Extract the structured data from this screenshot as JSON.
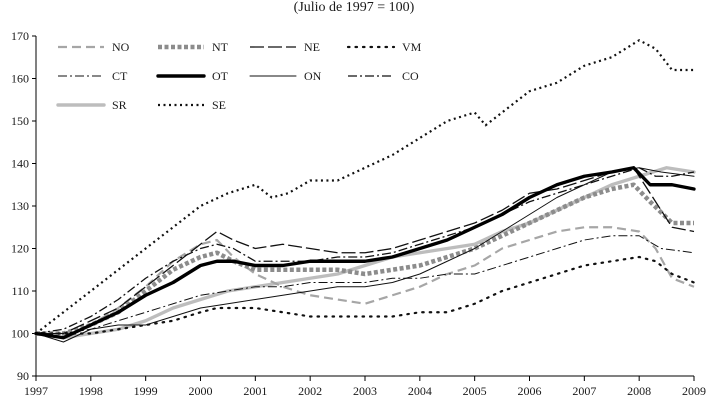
{
  "chart_data": {
    "type": "line",
    "subtitle": "(Julio de 1997 = 100)",
    "x_ticks": [
      "1997",
      "1998",
      "1999",
      "2000",
      "2001",
      "2002",
      "2003",
      "2004",
      "2005",
      "2006",
      "2007",
      "2008",
      "2009"
    ],
    "y_ticks": [
      90,
      100,
      110,
      120,
      130,
      140,
      150,
      160,
      170
    ],
    "xlim": [
      1997,
      2009
    ],
    "ylim": [
      90,
      170
    ],
    "legend_position": "top-left",
    "series": [
      {
        "name": "NO",
        "color": "#a6a6a6",
        "style": "dash",
        "x": [
          1997.0,
          1997.5,
          1998.0,
          1998.5,
          1999.0,
          1999.5,
          2000.0,
          2000.3,
          2000.6,
          2001.0,
          2001.5,
          2002.0,
          2002.5,
          2003.0,
          2003.5,
          2004.0,
          2004.5,
          2005.0,
          2005.5,
          2006.0,
          2006.5,
          2007.0,
          2007.5,
          2008.0,
          2008.3,
          2008.6,
          2009.0
        ],
        "y": [
          100,
          99,
          102,
          106,
          111,
          117,
          121,
          122,
          118,
          114,
          111,
          109,
          108,
          107,
          109,
          111,
          114,
          116,
          120,
          122,
          124,
          125,
          125,
          124,
          120,
          113,
          111
        ]
      },
      {
        "name": "NT",
        "color": "#8c8c8c",
        "style": "dotted-thick",
        "x": [
          1997.0,
          1997.5,
          1998.0,
          1998.5,
          1999.0,
          1999.5,
          2000.0,
          2000.3,
          2000.6,
          2001.0,
          2001.5,
          2002.0,
          2002.5,
          2003.0,
          2003.5,
          2004.0,
          2004.5,
          2005.0,
          2005.5,
          2006.0,
          2006.5,
          2007.0,
          2007.5,
          2007.9,
          2008.2,
          2008.6,
          2009.0
        ],
        "y": [
          100,
          100,
          102,
          105,
          110,
          115,
          118,
          119,
          117,
          115,
          115,
          115,
          115,
          114,
          115,
          116,
          118,
          120,
          123,
          126,
          129,
          132,
          134,
          135,
          131,
          126,
          126
        ]
      },
      {
        "name": "NE",
        "color": "#111111",
        "style": "longdash",
        "x": [
          1997.0,
          1997.5,
          1998.0,
          1998.5,
          1999.0,
          1999.5,
          2000.0,
          2000.3,
          2000.6,
          2001.0,
          2001.5,
          2002.0,
          2002.5,
          2003.0,
          2003.5,
          2004.0,
          2004.5,
          2005.0,
          2005.5,
          2006.0,
          2006.5,
          2007.0,
          2007.5,
          2007.9,
          2008.2,
          2008.6,
          2009.0
        ],
        "y": [
          100,
          100,
          103,
          106,
          111,
          116,
          121,
          124,
          122,
          120,
          121,
          120,
          119,
          119,
          120,
          122,
          124,
          126,
          129,
          133,
          134,
          136,
          138,
          139,
          133,
          125,
          124
        ]
      },
      {
        "name": "VM",
        "color": "#111111",
        "style": "dotted",
        "x": [
          1997.0,
          1997.5,
          1998.0,
          1998.5,
          1999.0,
          1999.5,
          2000.0,
          2000.3,
          2000.6,
          2001.0,
          2001.5,
          2002.0,
          2002.5,
          2003.0,
          2003.5,
          2004.0,
          2004.5,
          2005.0,
          2005.5,
          2006.0,
          2006.5,
          2007.0,
          2007.5,
          2008.0,
          2008.3,
          2008.6,
          2009.0
        ],
        "y": [
          100,
          100,
          100,
          101,
          102,
          103,
          105,
          106,
          106,
          106,
          105,
          104,
          104,
          104,
          104,
          105,
          105,
          107,
          110,
          112,
          114,
          116,
          117,
          118,
          117,
          114,
          112
        ]
      },
      {
        "name": "CT",
        "color": "#111111",
        "style": "dashdot-sparse",
        "x": [
          1997.0,
          1997.5,
          1998.0,
          1998.5,
          1999.0,
          1999.5,
          2000.0,
          2000.5,
          2001.0,
          2001.5,
          2002.0,
          2002.5,
          2003.0,
          2003.5,
          2004.0,
          2004.5,
          2005.0,
          2005.5,
          2006.0,
          2006.5,
          2007.0,
          2007.5,
          2008.0,
          2008.4,
          2009.0
        ],
        "y": [
          100,
          100,
          101,
          103,
          105,
          107,
          109,
          110,
          111,
          111,
          112,
          112,
          112,
          113,
          113,
          114,
          114,
          116,
          118,
          120,
          122,
          123,
          123,
          120,
          119
        ]
      },
      {
        "name": "OT",
        "color": "#000000",
        "style": "solid-thick",
        "x": [
          1997.0,
          1997.5,
          1998.0,
          1998.5,
          1999.0,
          1999.5,
          2000.0,
          2000.3,
          2000.6,
          2001.0,
          2001.5,
          2002.0,
          2002.5,
          2003.0,
          2003.5,
          2004.0,
          2004.5,
          2005.0,
          2005.5,
          2006.0,
          2006.5,
          2007.0,
          2007.5,
          2007.9,
          2008.2,
          2008.6,
          2009.0
        ],
        "y": [
          100,
          99,
          102,
          105,
          109,
          112,
          116,
          117,
          117,
          116,
          116,
          117,
          117,
          117,
          118,
          120,
          122,
          125,
          128,
          132,
          135,
          137,
          138,
          139,
          135,
          135,
          134
        ]
      },
      {
        "name": "ON",
        "color": "#111111",
        "style": "solid",
        "x": [
          1997.0,
          1997.5,
          1998.0,
          1998.5,
          1999.0,
          1999.5,
          2000.0,
          2000.5,
          2001.0,
          2001.5,
          2002.0,
          2002.5,
          2003.0,
          2003.5,
          2004.0,
          2004.5,
          2005.0,
          2005.5,
          2006.0,
          2006.5,
          2007.0,
          2007.5,
          2008.0,
          2008.4,
          2009.0
        ],
        "y": [
          100,
          98,
          101,
          102,
          102,
          104,
          106,
          107,
          108,
          109,
          110,
          111,
          111,
          112,
          114,
          117,
          120,
          124,
          128,
          132,
          135,
          138,
          139,
          138,
          137
        ]
      },
      {
        "name": "CO",
        "color": "#111111",
        "style": "dashdot",
        "x": [
          1997.0,
          1997.5,
          1998.0,
          1998.5,
          1999.0,
          1999.5,
          2000.0,
          2000.3,
          2000.6,
          2001.0,
          2001.5,
          2002.0,
          2002.5,
          2003.0,
          2003.5,
          2004.0,
          2004.5,
          2005.0,
          2005.5,
          2006.0,
          2006.5,
          2007.0,
          2007.5,
          2008.0,
          2008.3,
          2008.6,
          2009.0
        ],
        "y": [
          100,
          101,
          104,
          108,
          113,
          117,
          120,
          121,
          120,
          117,
          117,
          117,
          118,
          118,
          119,
          121,
          123,
          125,
          128,
          131,
          133,
          135,
          137,
          139,
          137,
          137,
          138
        ]
      },
      {
        "name": "SR",
        "color": "#bdbdbd",
        "style": "solid-thick",
        "x": [
          1997.0,
          1997.5,
          1998.0,
          1998.5,
          1999.0,
          1999.5,
          2000.0,
          2000.5,
          2001.0,
          2001.5,
          2002.0,
          2002.5,
          2003.0,
          2003.5,
          2004.0,
          2004.5,
          2005.0,
          2005.5,
          2006.0,
          2006.5,
          2007.0,
          2007.5,
          2008.0,
          2008.5,
          2009.0
        ],
        "y": [
          100,
          99,
          100,
          101,
          103,
          106,
          108,
          110,
          111,
          112,
          113,
          114,
          116,
          118,
          119,
          120,
          121,
          124,
          126,
          129,
          132,
          135,
          137,
          139,
          138
        ]
      },
      {
        "name": "SE",
        "color": "#111111",
        "style": "dotted-dense",
        "x": [
          1997.0,
          1997.5,
          1998.0,
          1998.5,
          1999.0,
          1999.5,
          2000.0,
          2000.5,
          2001.0,
          2001.3,
          2001.6,
          2002.0,
          2002.5,
          2003.0,
          2003.5,
          2004.0,
          2004.5,
          2005.0,
          2005.2,
          2005.5,
          2006.0,
          2006.5,
          2007.0,
          2007.5,
          2008.0,
          2008.3,
          2008.6,
          2009.0
        ],
        "y": [
          100,
          105,
          110,
          115,
          120,
          125,
          130,
          133,
          135,
          132,
          133,
          136,
          136,
          139,
          142,
          146,
          150,
          152,
          149,
          152,
          157,
          159,
          163,
          165,
          169,
          167,
          162,
          162
        ]
      }
    ]
  }
}
